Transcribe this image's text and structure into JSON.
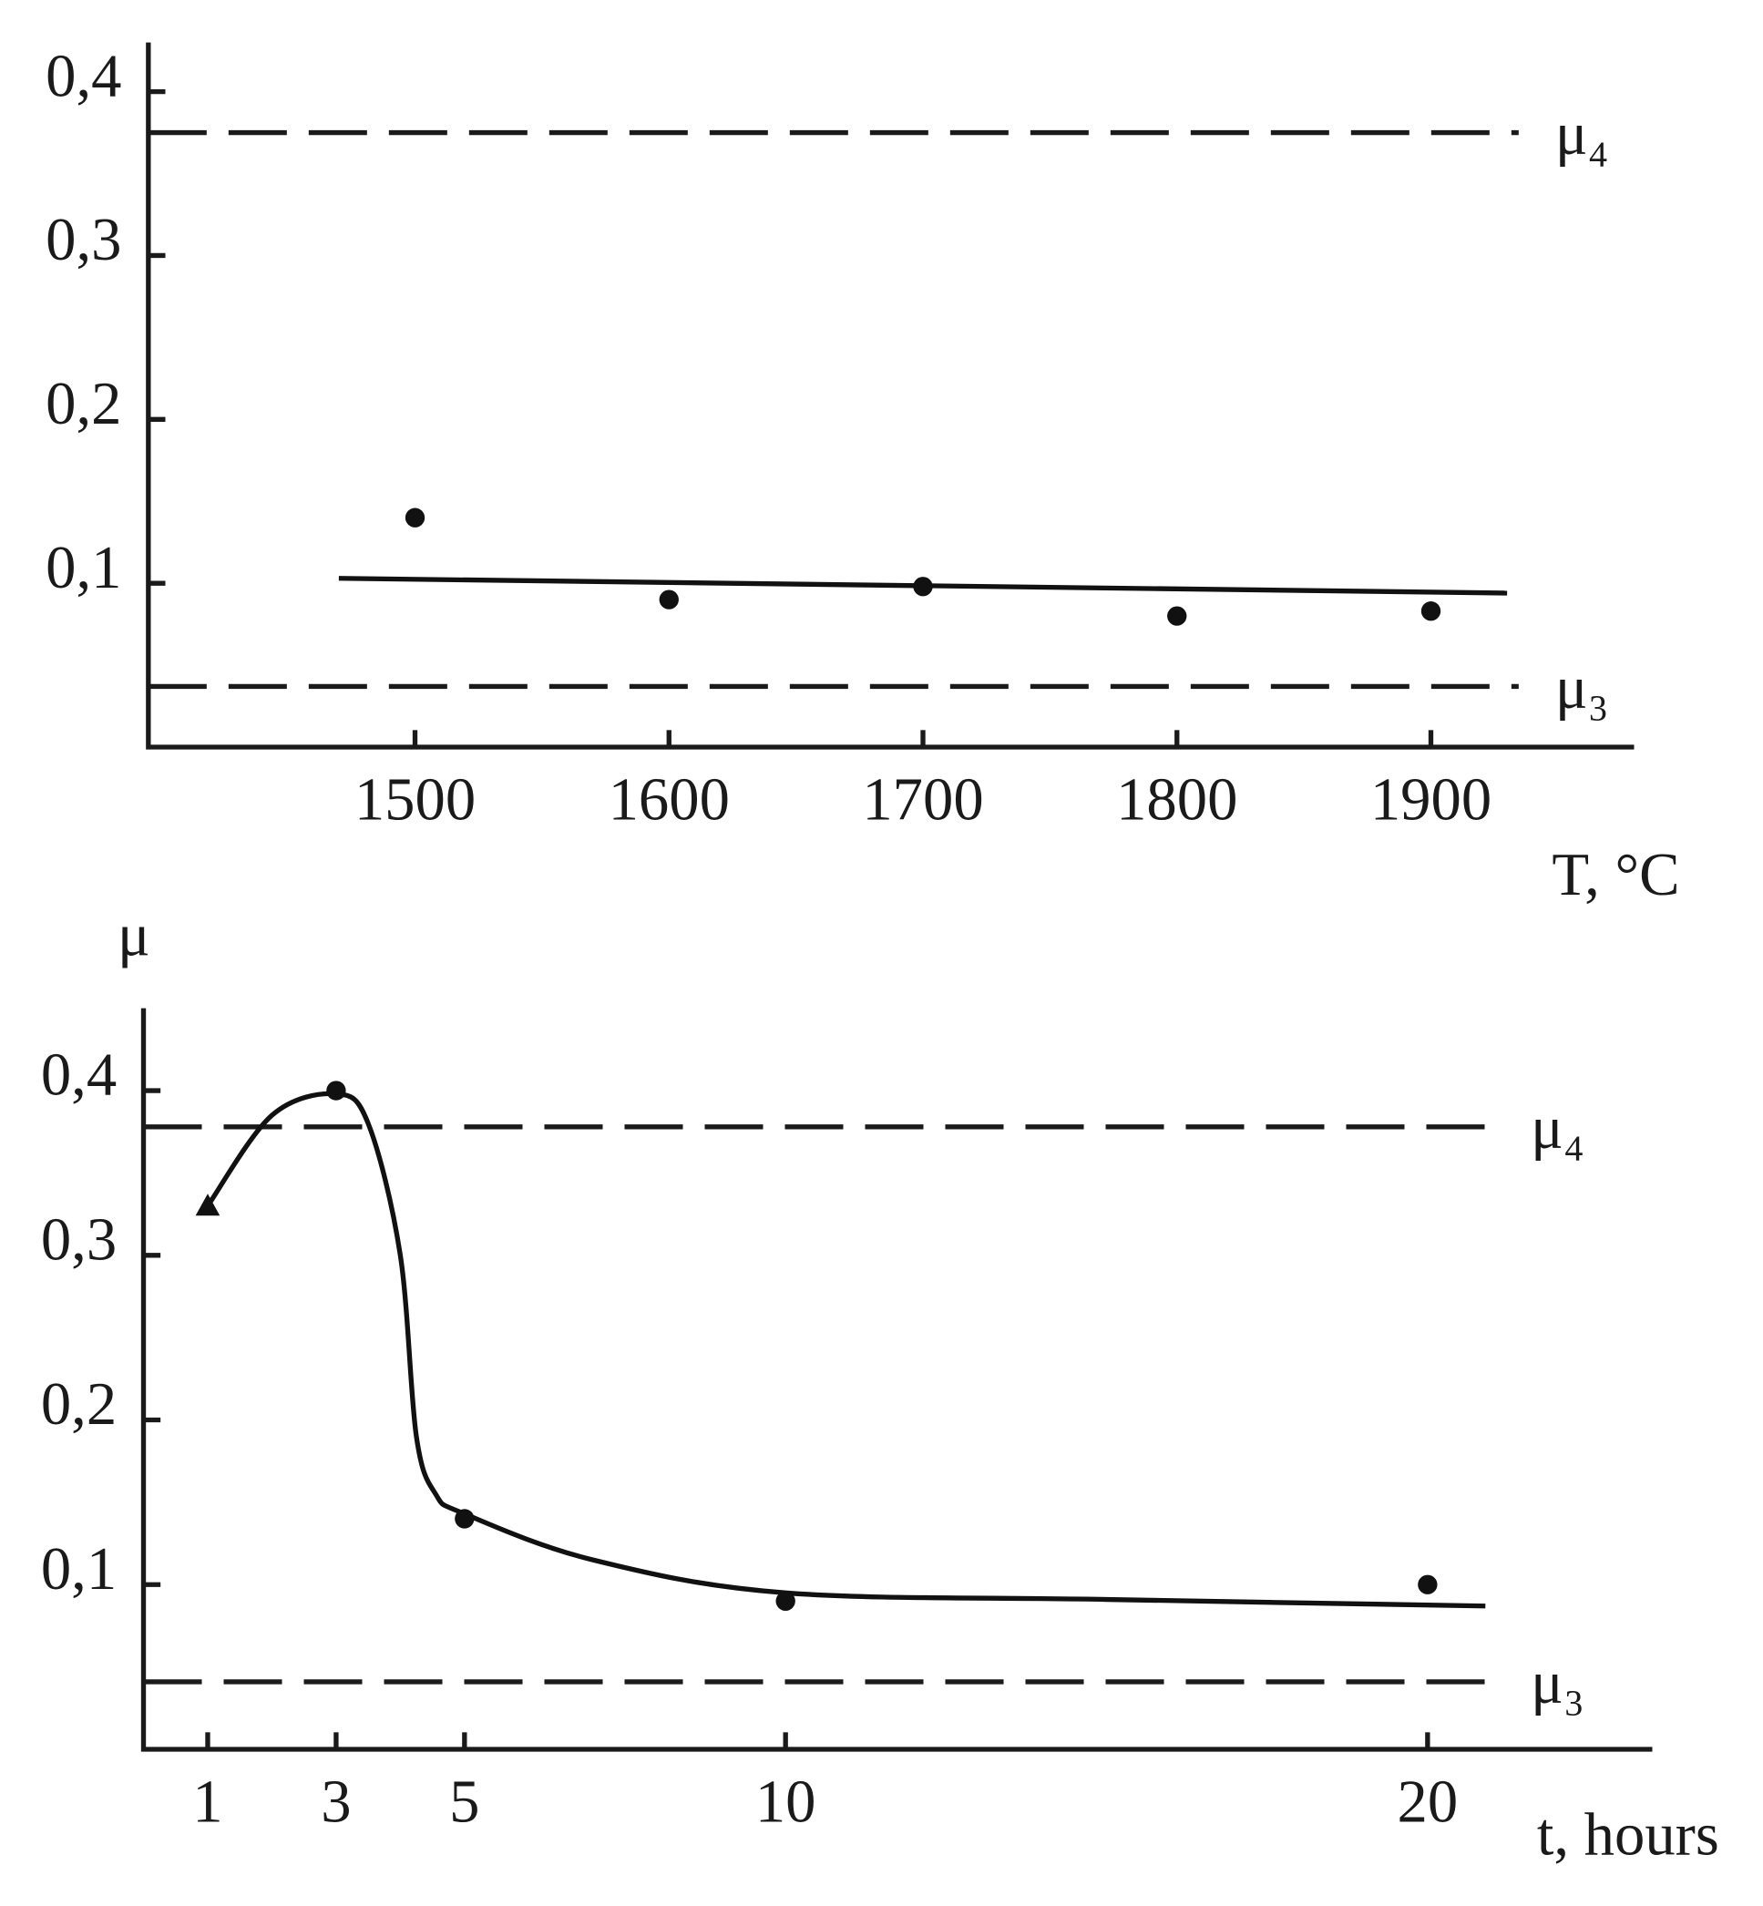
{
  "chart_data": [
    {
      "type": "scatter",
      "x": [
        1500,
        1600,
        1700,
        1800,
        1900
      ],
      "values": [
        0.14,
        0.09,
        0.098,
        0.08,
        0.083
      ],
      "color": "#111111",
      "fit_line": {
        "x": [
          1470,
          1930
        ],
        "values": [
          0.103,
          0.094
        ]
      },
      "ref_lines": [
        {
          "value": 0.375,
          "label": "μ₄"
        },
        {
          "value": 0.037,
          "label": "μ₃"
        }
      ],
      "x_label": "T, °C",
      "xlim": [
        1395,
        1980
      ],
      "xticks": [
        1500,
        1600,
        1700,
        1800,
        1900
      ],
      "ylim": [
        0,
        0.43
      ],
      "yticks": [
        {
          "value": 0.1,
          "label": "0,1"
        },
        {
          "value": 0.2,
          "label": "0,2"
        },
        {
          "value": 0.3,
          "label": "0,3"
        },
        {
          "value": 0.4,
          "label": "0,4"
        }
      ]
    },
    {
      "type": "line",
      "x": [
        1,
        3,
        5,
        10,
        20
      ],
      "values": [
        0.33,
        0.4,
        0.14,
        0.09,
        0.1
      ],
      "markers": [
        "triangle",
        "circle",
        "circle",
        "circle",
        "circle"
      ],
      "color": "#111111",
      "curve": {
        "x": [
          1,
          2,
          3,
          3.5,
          4,
          4.25,
          4.55,
          5,
          7,
          10,
          15,
          20.9
        ],
        "values": [
          0.33,
          0.385,
          0.398,
          0.38,
          0.3,
          0.19,
          0.155,
          0.143,
          0.115,
          0.095,
          0.091,
          0.087
        ]
      },
      "ref_lines": [
        {
          "value": 0.378,
          "label": "μ₄"
        },
        {
          "value": 0.041,
          "label": "μ₃"
        }
      ],
      "y_label": "μ",
      "x_label": "t, hours",
      "xlim": [
        0,
        23.5
      ],
      "xticks": [
        1,
        3,
        5,
        10,
        20
      ],
      "ylim": [
        0,
        0.45
      ],
      "yticks": [
        {
          "value": 0.1,
          "label": "0,1"
        },
        {
          "value": 0.2,
          "label": "0,2"
        },
        {
          "value": 0.3,
          "label": "0,3"
        },
        {
          "value": 0.4,
          "label": "0,4"
        }
      ]
    }
  ]
}
